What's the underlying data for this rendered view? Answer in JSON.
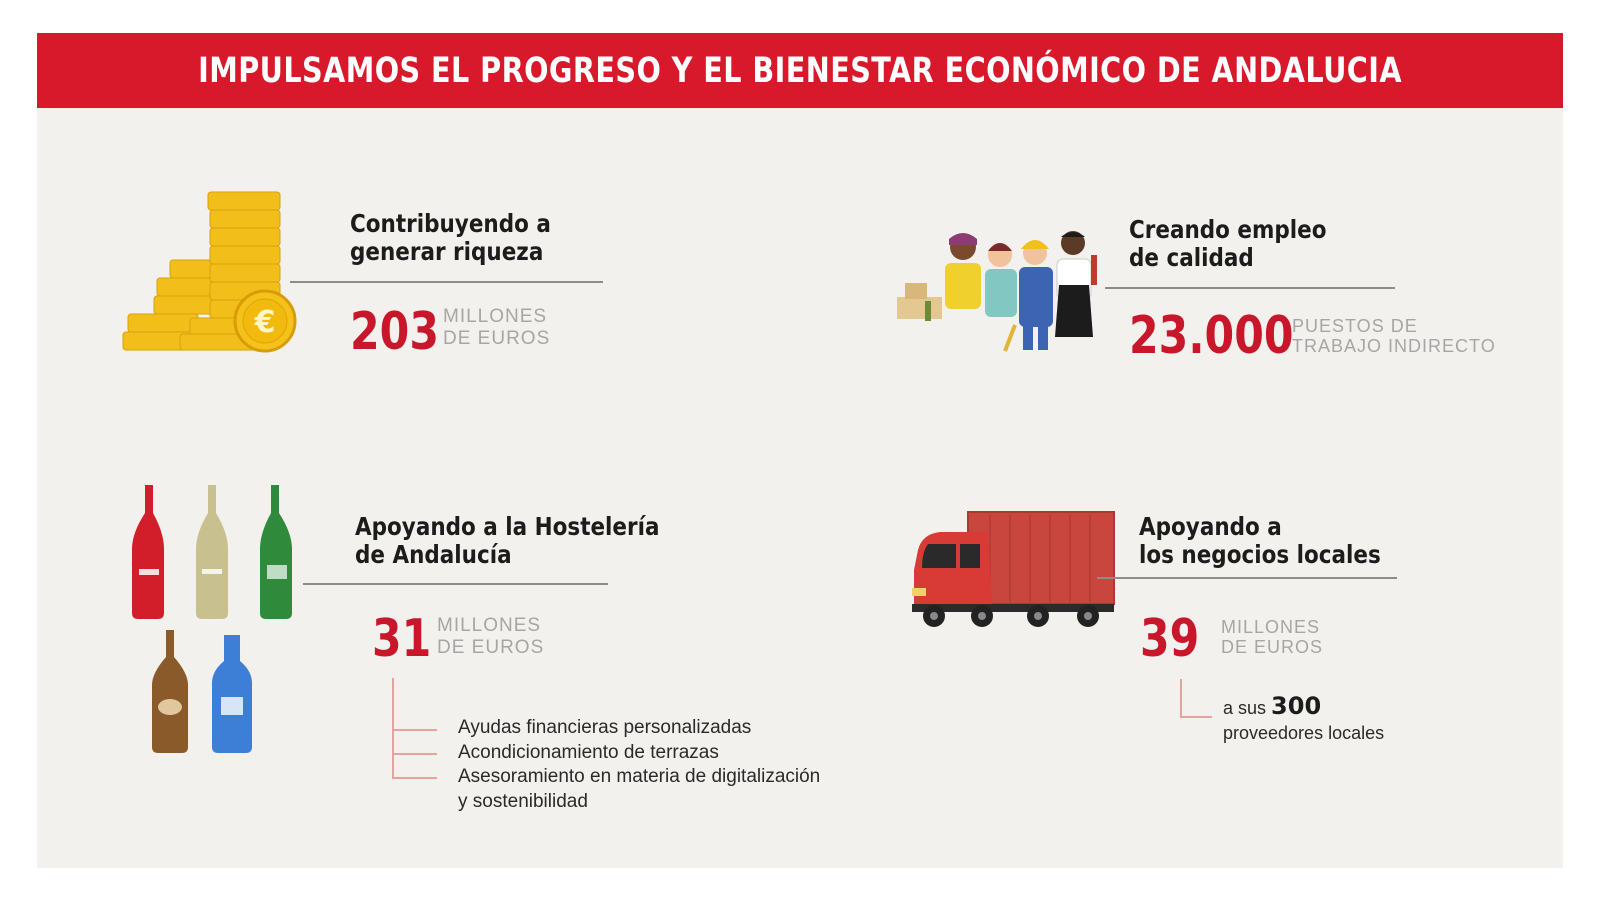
{
  "banner": {
    "title": "IMPULSAMOS EL PROGRESO Y EL BIENESTAR ECONÓMICO DE ANDALUCIA"
  },
  "colors": {
    "accent_red": "#d7192b",
    "number_red": "#c8162a",
    "muted_gray": "#a6a6a6",
    "background": "#f3f1ee"
  },
  "sections": {
    "wealth": {
      "icon": "euro-coins-stack-icon",
      "heading_line1": "Contribuyendo a",
      "heading_line2": "generar riqueza",
      "number": "203",
      "unit_line1": "MILLONES",
      "unit_line2": "DE EUROS"
    },
    "employment": {
      "icon": "workers-group-icon",
      "heading_line1": "Creando empleo",
      "heading_line2": "de calidad",
      "number": "23.000",
      "unit_line1": "PUESTOS DE",
      "unit_line2": "TRABAJO INDIRECTO"
    },
    "hospitality": {
      "icon": "beer-bottles-icon",
      "heading_line1": "Apoyando a la Hostelería",
      "heading_line2": "de Andalucía",
      "number": "31",
      "unit_line1": "MILLONES",
      "unit_line2": "DE EUROS",
      "bullets": [
        "Ayudas financieras personalizadas",
        "Acondicionamiento de terrazas",
        "Asesoramiento en materia de digitalización",
        "y sostenibilidad"
      ]
    },
    "local_business": {
      "icon": "delivery-truck-icon",
      "heading_line1": "Apoyando a",
      "heading_line2": "los negocios locales",
      "number": "39",
      "unit_line1": "MILLONES",
      "unit_line2": "DE EUROS",
      "suppliers_prefix": "a sus",
      "suppliers_count": "300",
      "suppliers_suffix": "proveedores locales"
    }
  }
}
